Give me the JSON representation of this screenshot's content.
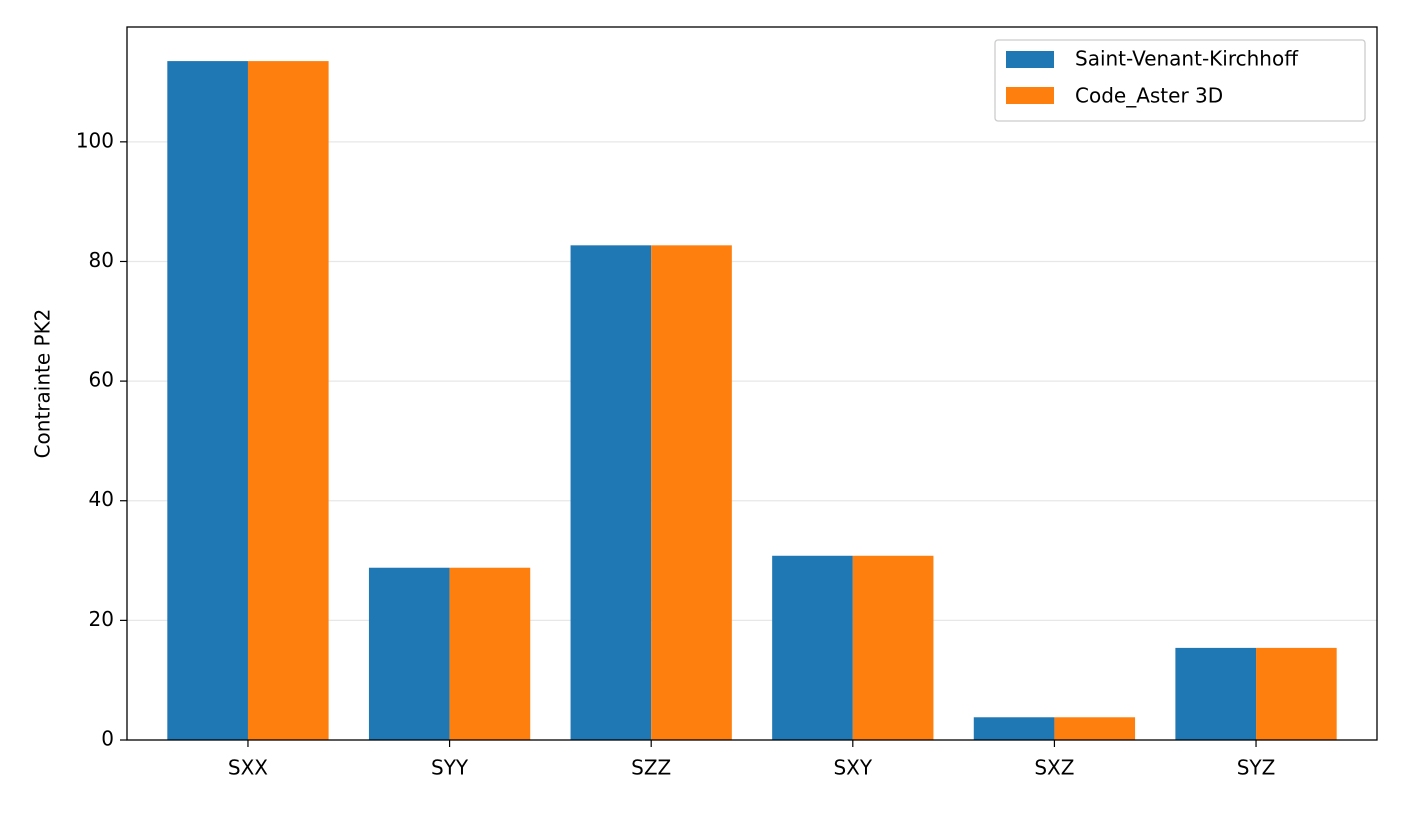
{
  "chart_data": {
    "type": "bar",
    "title": "",
    "xlabel": "",
    "ylabel": "Contrainte PK2",
    "categories": [
      "SXX",
      "SYY",
      "SZZ",
      "SXY",
      "SXZ",
      "SYZ"
    ],
    "series": [
      {
        "name": "Saint-Venant-Kirchhoff",
        "color": "#1f77b4",
        "values": [
          113.5,
          28.8,
          82.7,
          30.8,
          3.8,
          15.4
        ]
      },
      {
        "name": "Code_Aster 3D",
        "color": "#ff7f0e",
        "values": [
          113.5,
          28.8,
          82.7,
          30.8,
          3.8,
          15.4
        ]
      }
    ],
    "ylim": [
      0,
      119.2
    ],
    "yticks": [
      0,
      20,
      40,
      60,
      80,
      100
    ],
    "grid": "y",
    "legend_position": "top-right"
  }
}
